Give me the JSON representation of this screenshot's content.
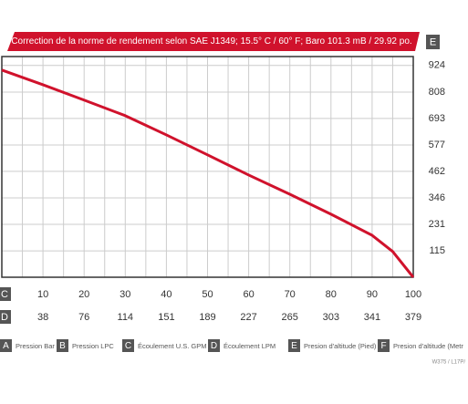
{
  "chart_data": {
    "type": "line",
    "title": "Correction de la norme de rendement selon SAE J1349;  15.5° C  / 60° F;  Baro 101.3 mB / 29.92 po.",
    "x": [
      0,
      10,
      20,
      30,
      40,
      50,
      60,
      70,
      80,
      90,
      95,
      100
    ],
    "series": [
      {
        "name": "E",
        "color": "#d0122c",
        "values": [
          904,
          840,
          773,
          705,
          621,
          534,
          446,
          362,
          275,
          183,
          112,
          0
        ]
      }
    ],
    "xlim": [
      0,
      100
    ],
    "xticks": [
      10,
      20,
      30,
      40,
      50,
      60,
      70,
      80,
      90,
      100
    ],
    "x2ticks": [
      38,
      76,
      114,
      151,
      189,
      227,
      265,
      303,
      341,
      379
    ],
    "ylim": [
      0,
      963
    ],
    "yticks": [
      115,
      231,
      346,
      462,
      577,
      693,
      808,
      924
    ],
    "axis_letters": {
      "x": "C",
      "x2": "D",
      "y": "E"
    },
    "grid": true,
    "legend": [
      {
        "letter": "A",
        "text": "Pression Bar"
      },
      {
        "letter": "B",
        "text": "Pression LPC"
      },
      {
        "letter": "C",
        "text": "Écoulement U.S. GPM"
      },
      {
        "letter": "D",
        "text": "Écoulement LPM"
      },
      {
        "letter": "E",
        "text": "Presion d'altitude (Pied)"
      },
      {
        "letter": "F",
        "text": "Presion d'altitude (Metr"
      }
    ],
    "footnote": "W375 / L17P/"
  }
}
